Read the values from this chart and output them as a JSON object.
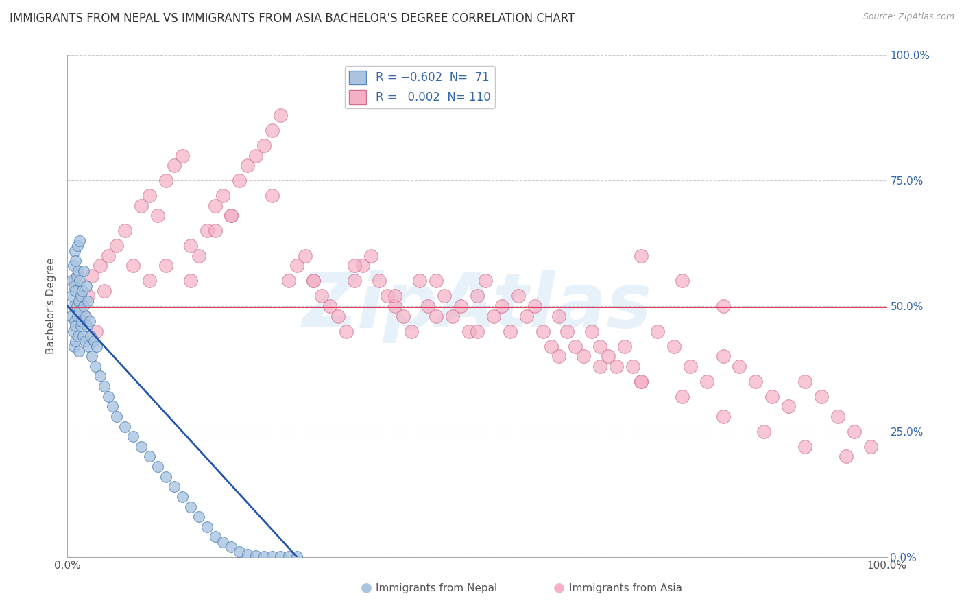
{
  "title": "IMMIGRANTS FROM NEPAL VS IMMIGRANTS FROM ASIA BACHELOR'S DEGREE CORRELATION CHART",
  "source": "Source: ZipAtlas.com",
  "ylabel": "Bachelor's Degree",
  "xlabel_nepal": "Immigrants from Nepal",
  "xlabel_asia": "Immigrants from Asia",
  "xlim": [
    0,
    1.0
  ],
  "ylim": [
    0,
    1.0
  ],
  "x_ticks": [
    0.0,
    1.0
  ],
  "y_ticks": [
    0.0,
    0.25,
    0.5,
    0.75,
    1.0
  ],
  "x_tick_labels_left": [
    "0.0%"
  ],
  "x_tick_labels_right": [
    "100.0%"
  ],
  "y_tick_labels": [
    "0.0%",
    "25.0%",
    "50.0%",
    "75.0%",
    "100.0%"
  ],
  "nepal_color": "#aac4e0",
  "nepal_edge_color": "#5588bb",
  "asia_color": "#f5b0c5",
  "asia_edge_color": "#d07090",
  "trend_nepal_color": "#2255aa",
  "trend_asia_color": "#e04060",
  "nepal_R": -0.602,
  "nepal_N": 71,
  "asia_R": 0.002,
  "asia_N": 110,
  "background_color": "#ffffff",
  "grid_color": "#cccccc",
  "watermark": "ZipAtlas",
  "watermark_color": "#b8d8f0",
  "title_fontsize": 12,
  "axis_label_fontsize": 11,
  "tick_fontsize": 11,
  "legend_fontsize": 12,
  "nepal_scatter_x": [
    0.005,
    0.005,
    0.005,
    0.007,
    0.007,
    0.007,
    0.008,
    0.008,
    0.009,
    0.009,
    0.01,
    0.01,
    0.01,
    0.01,
    0.011,
    0.011,
    0.012,
    0.012,
    0.013,
    0.013,
    0.014,
    0.014,
    0.015,
    0.015,
    0.015,
    0.016,
    0.016,
    0.017,
    0.018,
    0.019,
    0.02,
    0.02,
    0.021,
    0.022,
    0.023,
    0.024,
    0.025,
    0.026,
    0.027,
    0.028,
    0.03,
    0.032,
    0.034,
    0.036,
    0.04,
    0.045,
    0.05,
    0.055,
    0.06,
    0.07,
    0.08,
    0.09,
    0.1,
    0.11,
    0.12,
    0.13,
    0.14,
    0.15,
    0.16,
    0.17,
    0.18,
    0.19,
    0.2,
    0.21,
    0.22,
    0.23,
    0.24,
    0.25,
    0.26,
    0.27,
    0.28
  ],
  "nepal_scatter_y": [
    0.52,
    0.48,
    0.55,
    0.5,
    0.45,
    0.58,
    0.42,
    0.54,
    0.47,
    0.61,
    0.53,
    0.46,
    0.59,
    0.43,
    0.56,
    0.5,
    0.48,
    0.62,
    0.44,
    0.57,
    0.51,
    0.41,
    0.55,
    0.49,
    0.63,
    0.46,
    0.52,
    0.47,
    0.53,
    0.44,
    0.5,
    0.57,
    0.43,
    0.48,
    0.54,
    0.46,
    0.51,
    0.42,
    0.47,
    0.44,
    0.4,
    0.43,
    0.38,
    0.42,
    0.36,
    0.34,
    0.32,
    0.3,
    0.28,
    0.26,
    0.24,
    0.22,
    0.2,
    0.18,
    0.16,
    0.14,
    0.12,
    0.1,
    0.08,
    0.06,
    0.04,
    0.03,
    0.02,
    0.01,
    0.005,
    0.003,
    0.001,
    0.001,
    0.001,
    0.001,
    0.001
  ],
  "asia_scatter_x": [
    0.01,
    0.015,
    0.02,
    0.025,
    0.03,
    0.035,
    0.04,
    0.045,
    0.05,
    0.06,
    0.07,
    0.08,
    0.09,
    0.1,
    0.11,
    0.12,
    0.13,
    0.14,
    0.15,
    0.16,
    0.17,
    0.18,
    0.19,
    0.2,
    0.21,
    0.22,
    0.23,
    0.24,
    0.25,
    0.26,
    0.27,
    0.28,
    0.29,
    0.3,
    0.31,
    0.32,
    0.33,
    0.34,
    0.35,
    0.36,
    0.37,
    0.38,
    0.39,
    0.4,
    0.41,
    0.42,
    0.43,
    0.44,
    0.45,
    0.46,
    0.47,
    0.48,
    0.49,
    0.5,
    0.51,
    0.52,
    0.53,
    0.54,
    0.55,
    0.56,
    0.57,
    0.58,
    0.59,
    0.6,
    0.61,
    0.62,
    0.63,
    0.64,
    0.65,
    0.66,
    0.67,
    0.68,
    0.69,
    0.7,
    0.72,
    0.74,
    0.76,
    0.78,
    0.8,
    0.82,
    0.84,
    0.86,
    0.88,
    0.9,
    0.92,
    0.94,
    0.96,
    0.98,
    0.1,
    0.12,
    0.15,
    0.18,
    0.2,
    0.25,
    0.3,
    0.35,
    0.4,
    0.45,
    0.5,
    0.6,
    0.65,
    0.7,
    0.75,
    0.8,
    0.85,
    0.9,
    0.95,
    0.7,
    0.75,
    0.8
  ],
  "asia_scatter_y": [
    0.55,
    0.5,
    0.48,
    0.52,
    0.56,
    0.45,
    0.58,
    0.53,
    0.6,
    0.62,
    0.65,
    0.58,
    0.7,
    0.72,
    0.68,
    0.75,
    0.78,
    0.8,
    0.55,
    0.6,
    0.65,
    0.7,
    0.72,
    0.68,
    0.75,
    0.78,
    0.8,
    0.82,
    0.85,
    0.88,
    0.55,
    0.58,
    0.6,
    0.55,
    0.52,
    0.5,
    0.48,
    0.45,
    0.55,
    0.58,
    0.6,
    0.55,
    0.52,
    0.5,
    0.48,
    0.45,
    0.55,
    0.5,
    0.55,
    0.52,
    0.48,
    0.5,
    0.45,
    0.52,
    0.55,
    0.48,
    0.5,
    0.45,
    0.52,
    0.48,
    0.5,
    0.45,
    0.42,
    0.48,
    0.45,
    0.42,
    0.4,
    0.45,
    0.42,
    0.4,
    0.38,
    0.42,
    0.38,
    0.35,
    0.45,
    0.42,
    0.38,
    0.35,
    0.4,
    0.38,
    0.35,
    0.32,
    0.3,
    0.35,
    0.32,
    0.28,
    0.25,
    0.22,
    0.55,
    0.58,
    0.62,
    0.65,
    0.68,
    0.72,
    0.55,
    0.58,
    0.52,
    0.48,
    0.45,
    0.4,
    0.38,
    0.35,
    0.32,
    0.28,
    0.25,
    0.22,
    0.2,
    0.6,
    0.55,
    0.5
  ],
  "trend_nepal_x_start": 0.0,
  "trend_nepal_x_end": 0.28,
  "trend_nepal_y_start": 0.5,
  "trend_nepal_y_end": 0.0,
  "trend_asia_y": 0.497
}
